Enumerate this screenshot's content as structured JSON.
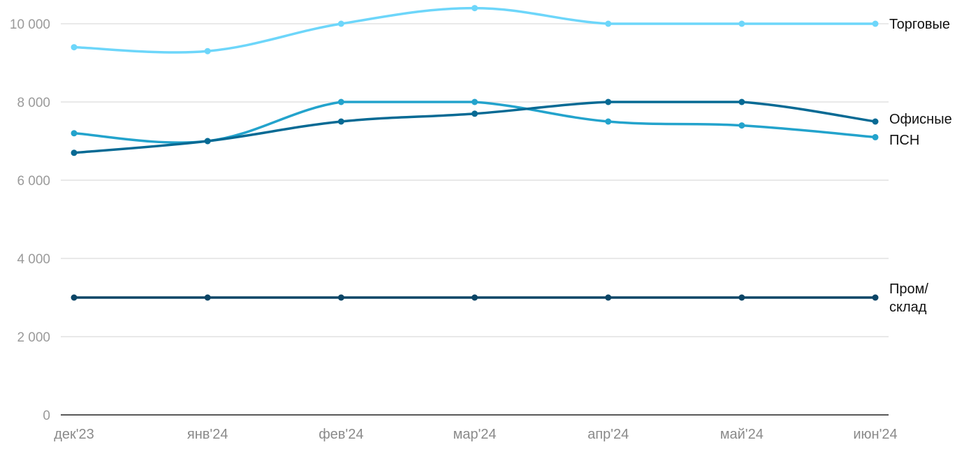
{
  "chart_data": {
    "type": "line",
    "title": "",
    "xlabel": "",
    "ylabel": "",
    "categories": [
      "дек'23",
      "янв'24",
      "фев'24",
      "мар'24",
      "апр'24",
      "май'24",
      "июн'24"
    ],
    "ylim": [
      0,
      10000
    ],
    "yticks": [
      0,
      2000,
      4000,
      6000,
      8000,
      10000
    ],
    "ytick_labels": [
      "0",
      "2 000",
      "4 000",
      "6 000",
      "8 000",
      "10 000"
    ],
    "grid": true,
    "legend": "end-of-line labels",
    "series": [
      {
        "name": "Торговые",
        "label_lines": [
          "Торговые"
        ],
        "color": "#6dd6fa",
        "values": [
          9400,
          9300,
          10000,
          10400,
          10000,
          10000,
          10000
        ]
      },
      {
        "name": "ПСН",
        "label_lines": [
          "ПСН"
        ],
        "color": "#23a3cc",
        "values": [
          7200,
          7000,
          8000,
          8000,
          7500,
          7400,
          7100
        ]
      },
      {
        "name": "Офисные",
        "label_lines": [
          "Офисные"
        ],
        "color": "#076a94",
        "values": [
          6700,
          7000,
          7500,
          7700,
          8000,
          8000,
          7500
        ]
      },
      {
        "name": "Пром/склад",
        "label_lines": [
          "Пром/",
          "склад"
        ],
        "color": "#0b4566",
        "values": [
          3000,
          3000,
          3000,
          3000,
          3000,
          3000,
          3000
        ]
      }
    ]
  }
}
